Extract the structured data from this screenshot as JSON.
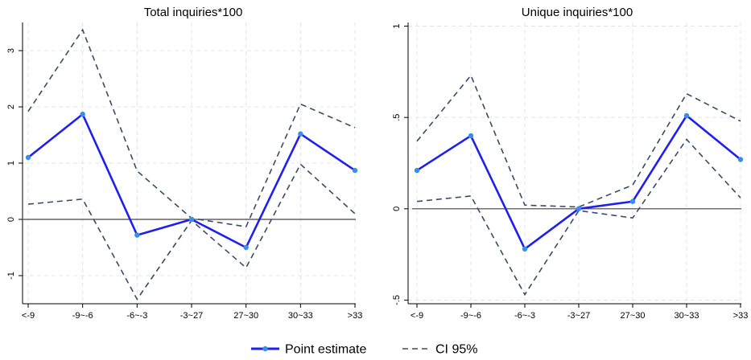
{
  "chart_data": [
    {
      "type": "line",
      "title": "Total inquiries*100",
      "xlabel": "",
      "ylabel": "",
      "categories": [
        "<-9",
        "-9~-6",
        "-6~-3",
        "-3~27",
        "27~30",
        "30~33",
        ">33"
      ],
      "ylim": [
        -1.5,
        3.5
      ],
      "yticks": [
        -1,
        0,
        1,
        2,
        3
      ],
      "ytick_labels": [
        "-1",
        "0",
        "1",
        "2",
        "3"
      ],
      "grid": true,
      "reference_line": 0,
      "series": [
        {
          "name": "Point estimate",
          "style": "solid-markers",
          "color": "#1f1ff0",
          "marker_color": "#3a8ee8",
          "values": [
            1.1,
            1.87,
            -0.28,
            0.0,
            -0.5,
            1.52,
            0.87
          ]
        },
        {
          "name": "CI 95%",
          "style": "dashed",
          "color": "#3b4a66",
          "values": [
            1.92,
            3.37,
            0.86,
            0.02,
            -0.13,
            2.05,
            1.63
          ]
        },
        {
          "name": "CI 95%",
          "style": "dashed",
          "color": "#3b4a66",
          "legend": false,
          "values": [
            0.27,
            0.36,
            -1.42,
            -0.02,
            -0.86,
            0.98,
            0.1
          ]
        }
      ]
    },
    {
      "type": "line",
      "title": "Unique inquiries*100",
      "xlabel": "",
      "ylabel": "",
      "categories": [
        "<-9",
        "-9~-6",
        "-6~-3",
        "-3~27",
        "27~30",
        "30~33",
        ">33"
      ],
      "ylim": [
        -0.52,
        1.02
      ],
      "yticks": [
        -0.5,
        0,
        0.5,
        1
      ],
      "ytick_labels": [
        "-.5",
        "0",
        ".5",
        "1"
      ],
      "grid": true,
      "reference_line": 0,
      "series": [
        {
          "name": "Point estimate",
          "style": "solid-markers",
          "color": "#1f1ff0",
          "marker_color": "#3a8ee8",
          "values": [
            0.21,
            0.4,
            -0.22,
            0.0,
            0.04,
            0.51,
            0.27
          ]
        },
        {
          "name": "CI 95%",
          "style": "dashed",
          "color": "#3b4a66",
          "values": [
            0.37,
            0.73,
            0.02,
            0.01,
            0.13,
            0.63,
            0.48
          ]
        },
        {
          "name": "CI 95%",
          "style": "dashed",
          "color": "#3b4a66",
          "legend": false,
          "values": [
            0.04,
            0.07,
            -0.47,
            -0.01,
            -0.05,
            0.38,
            0.06
          ]
        }
      ]
    }
  ],
  "legend": {
    "position": "bottom-center",
    "items": [
      {
        "label": "Point estimate",
        "style": "solid-markers",
        "color": "#1f1ff0",
        "marker_color": "#3a8ee8"
      },
      {
        "label": "CI 95%",
        "style": "dashed",
        "color": "#3b4a66"
      }
    ]
  }
}
